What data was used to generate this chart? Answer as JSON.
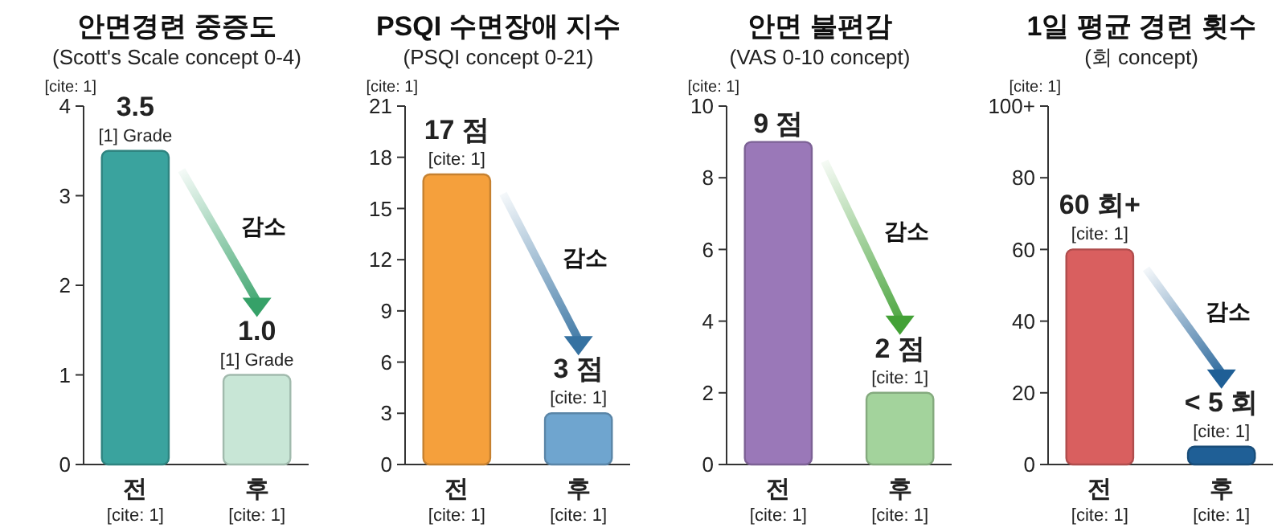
{
  "chart_data": [
    {
      "type": "bar",
      "title": "안면경련 중증도",
      "subtitle": "(Scott's Scale concept 0-4)",
      "categories": [
        "전\n[cite: 1]",
        "후\n[cite: 1]"
      ],
      "values": [
        3.5,
        1.0
      ],
      "colors": [
        "#3aa39e",
        "#c8e6d6"
      ],
      "value_labels": [
        "3.5\n[1] Grade",
        "1.0\n[1] Grade"
      ],
      "ylim": [
        0,
        4
      ],
      "yticks": [
        0,
        1,
        2,
        3,
        4
      ],
      "annotations": [
        "[cite: 1]",
        "감소"
      ]
    },
    {
      "type": "bar",
      "title": "PSQI 수면장애 지수",
      "subtitle": "(PSQI concept 0-21)",
      "categories": [
        "전\n[cite: 1]",
        "후\n[cite: 1]"
      ],
      "values": [
        17,
        3
      ],
      "colors": [
        "#f5a03c",
        "#6fa5cf"
      ],
      "value_labels": [
        "17 점\n[cite: 1]",
        "3 점\n[cite: 1]"
      ],
      "ylim": [
        0,
        21
      ],
      "yticks": [
        0,
        3,
        6,
        9,
        12,
        15,
        18,
        21
      ],
      "annotations": [
        "[cite: 1]",
        "감소"
      ]
    },
    {
      "type": "bar",
      "title": "안면 불편감",
      "subtitle": "(VAS 0-10 concept)",
      "categories": [
        "전\n[cite: 1]",
        "후\n[cite: 1]"
      ],
      "values": [
        9,
        2
      ],
      "colors": [
        "#9a78b8",
        "#a3d39c"
      ],
      "value_labels": [
        "9 점",
        "2 점\n[cite: 1]"
      ],
      "ylim": [
        0,
        10
      ],
      "yticks": [
        0,
        2,
        4,
        6,
        8,
        10
      ],
      "annotations": [
        "[cite: 1]",
        "감소"
      ]
    },
    {
      "type": "bar",
      "title": "1일 평균 경련 횟수",
      "subtitle": "(회 concept)",
      "categories": [
        "전\n[cite: 1]",
        "후\n[cite: 1]"
      ],
      "values": [
        60,
        5
      ],
      "colors": [
        "#d95f5f",
        "#1f5f96"
      ],
      "value_labels": [
        "60 회+\n[cite: 1]",
        "< 5 회\n[cite: 1]"
      ],
      "ylim": [
        0,
        100
      ],
      "yticks": [
        0,
        20,
        40,
        60,
        80,
        {
          "value": 100,
          "label": "100+"
        }
      ],
      "annotations": [
        "[cite: 1]",
        "감소"
      ]
    }
  ]
}
